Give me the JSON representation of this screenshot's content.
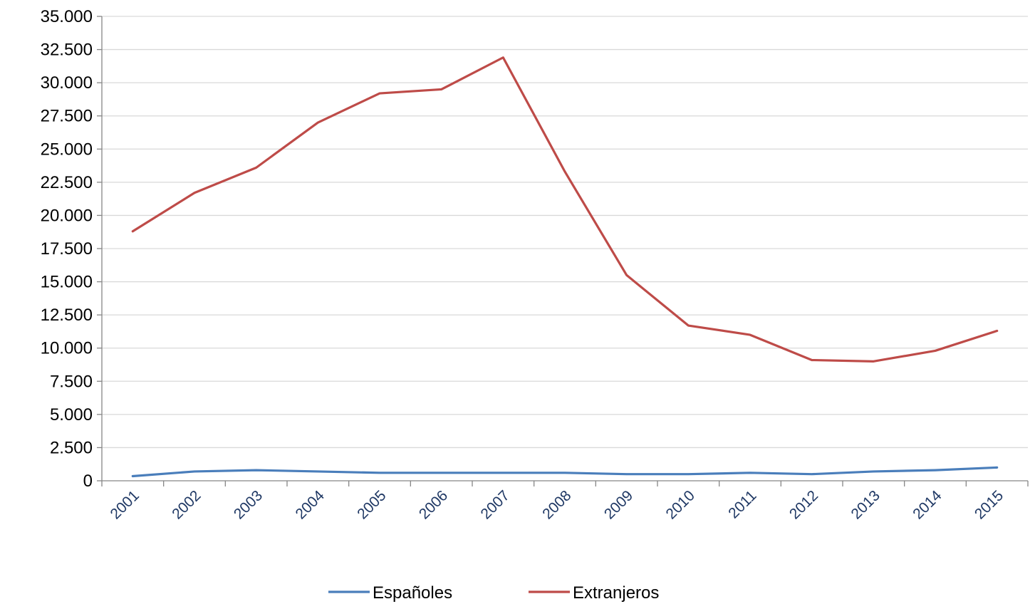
{
  "chart_data": {
    "type": "line",
    "x": [
      "2001",
      "2002",
      "2003",
      "2004",
      "2005",
      "2006",
      "2007",
      "2008",
      "2009",
      "2010",
      "2011",
      "2012",
      "2013",
      "2014",
      "2015"
    ],
    "series": [
      {
        "name": "Españoles",
        "color": "#4a7ebb",
        "values": [
          350,
          700,
          800,
          700,
          600,
          600,
          600,
          600,
          500,
          500,
          600,
          500,
          700,
          800,
          1000
        ]
      },
      {
        "name": "Extranjeros",
        "color": "#be4b48",
        "values": [
          18800,
          21700,
          23600,
          27000,
          29200,
          29500,
          31900,
          23300,
          15500,
          11700,
          11000,
          9100,
          9000,
          9800,
          11300
        ]
      }
    ],
    "yticks": [
      0,
      2500,
      5000,
      7500,
      10000,
      12500,
      15000,
      17500,
      20000,
      22500,
      25000,
      27500,
      30000,
      32500,
      35000
    ],
    "ytick_labels": [
      "0",
      "2.500",
      "5.000",
      "7.500",
      "10.000",
      "12.500",
      "15.000",
      "17.500",
      "20.000",
      "22.500",
      "25.000",
      "27.500",
      "30.000",
      "32.500",
      "35.000"
    ],
    "ylim": [
      0,
      35000
    ],
    "grid": true,
    "legend_position": "bottom"
  }
}
